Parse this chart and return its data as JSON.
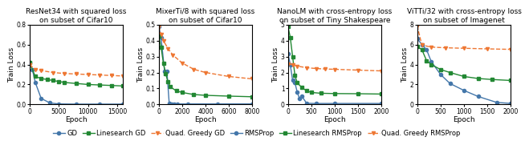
{
  "plots": [
    {
      "title": "ResNet34 with squared loss\non subset of Cifar10",
      "xlabel": "Epoch",
      "ylabel": "Train Loss",
      "xlim": [
        0,
        16000
      ],
      "ylim": [
        0,
        0.8
      ],
      "xticks": [
        0,
        5000,
        10000,
        15000
      ],
      "yticks": [
        0.0,
        0.2,
        0.4,
        0.6,
        0.8
      ],
      "series": [
        {
          "label": "GD",
          "color": "#4477AA",
          "marker": "o",
          "linestyle": "-",
          "x": [
            0,
            500,
            1000,
            2000,
            3500,
            5000,
            8000,
            12000,
            16000
          ],
          "y": [
            0.42,
            0.35,
            0.22,
            0.06,
            0.015,
            0.005,
            0.003,
            0.003,
            0.003
          ]
        },
        {
          "label": "Linesearch GD",
          "color": "#228833",
          "marker": "s",
          "linestyle": "-",
          "x": [
            0,
            1000,
            2000,
            3000,
            4000,
            5000,
            6000,
            8000,
            10000,
            12000,
            14000,
            16000
          ],
          "y": [
            0.42,
            0.28,
            0.26,
            0.25,
            0.24,
            0.23,
            0.22,
            0.21,
            0.2,
            0.195,
            0.19,
            0.185
          ]
        },
        {
          "label": "Quad. Greedy GD",
          "color": "#EE7733",
          "marker": "v",
          "linestyle": "--",
          "x": [
            0,
            1000,
            2000,
            4000,
            6000,
            8000,
            10000,
            12000,
            14000,
            16000
          ],
          "y": [
            0.4,
            0.35,
            0.34,
            0.32,
            0.31,
            0.305,
            0.3,
            0.295,
            0.29,
            0.285
          ]
        }
      ]
    },
    {
      "title": "MixerTi/8 with squared loss\non subset of Cifar10",
      "xlabel": "Epoch",
      "ylabel": "Train Loss",
      "xlim": [
        0,
        8000
      ],
      "ylim": [
        0,
        0.5
      ],
      "xticks": [
        0,
        2000,
        4000,
        6000,
        8000
      ],
      "yticks": [
        0.0,
        0.1,
        0.2,
        0.3,
        0.4,
        0.5
      ],
      "series": [
        {
          "label": "GD",
          "color": "#4477AA",
          "marker": "o",
          "linestyle": "-",
          "x": [
            0,
            200,
            500,
            700,
            900,
            1100,
            1300,
            1600,
            2500,
            5000,
            8000
          ],
          "y": [
            0.49,
            0.42,
            0.21,
            0.21,
            0.005,
            0.003,
            0.003,
            0.003,
            0.003,
            0.003,
            0.003
          ]
        },
        {
          "label": "Linesearch GD",
          "color": "#228833",
          "marker": "s",
          "linestyle": "-",
          "x": [
            0,
            200,
            400,
            600,
            800,
            1000,
            1500,
            2000,
            3000,
            4000,
            6000,
            8000
          ],
          "y": [
            0.43,
            0.36,
            0.26,
            0.19,
            0.14,
            0.11,
            0.085,
            0.075,
            0.062,
            0.057,
            0.052,
            0.048
          ]
        },
        {
          "label": "Quad. Greedy GD",
          "color": "#EE7733",
          "marker": "v",
          "linestyle": "--",
          "x": [
            0,
            200,
            400,
            800,
            1200,
            2000,
            3000,
            4000,
            6000,
            8000
          ],
          "y": [
            0.49,
            0.44,
            0.4,
            0.35,
            0.31,
            0.26,
            0.22,
            0.2,
            0.175,
            0.16
          ]
        }
      ]
    },
    {
      "title": "NanoLM with cross-entropy loss\non subset of Tiny Shakespeare",
      "xlabel": "Epoch",
      "ylabel": "Train Loss",
      "xlim": [
        0,
        2000
      ],
      "ylim": [
        0,
        5
      ],
      "xticks": [
        0,
        500,
        1000,
        1500,
        2000
      ],
      "yticks": [
        0,
        1,
        2,
        3,
        4,
        5
      ],
      "series": [
        {
          "label": "RMSProp",
          "color": "#4477AA",
          "marker": "o",
          "linestyle": "-",
          "x": [
            0,
            50,
            100,
            150,
            200,
            250,
            300,
            400,
            600,
            1000,
            2000
          ],
          "y": [
            3.2,
            2.5,
            1.5,
            1.35,
            0.75,
            0.35,
            0.5,
            0.07,
            0.06,
            0.06,
            0.06
          ]
        },
        {
          "label": "Linesearch RMSProp",
          "color": "#228833",
          "marker": "s",
          "linestyle": "-",
          "x": [
            0,
            50,
            100,
            150,
            200,
            300,
            400,
            500,
            700,
            1000,
            1500,
            2000
          ],
          "y": [
            4.9,
            4.2,
            3.0,
            1.8,
            1.35,
            1.05,
            0.85,
            0.75,
            0.7,
            0.68,
            0.67,
            0.65
          ]
        },
        {
          "label": "Quad. Greedy RMSProp",
          "color": "#EE7733",
          "marker": "v",
          "linestyle": "--",
          "x": [
            0,
            100,
            200,
            400,
            600,
            800,
            1000,
            1500,
            2000
          ],
          "y": [
            2.55,
            2.48,
            2.4,
            2.3,
            2.25,
            2.22,
            2.2,
            2.15,
            2.1
          ]
        }
      ]
    },
    {
      "title": "ViTTi/32 with cross-entropy loss\non subset of Imagenet",
      "xlabel": "Epoch",
      "ylabel": "Train Loss",
      "xlim": [
        0,
        2000
      ],
      "ylim": [
        0,
        8
      ],
      "xticks": [
        0,
        500,
        1000,
        1500,
        2000
      ],
      "yticks": [
        0,
        2,
        4,
        6,
        8
      ],
      "series": [
        {
          "label": "RMSProp",
          "color": "#4477AA",
          "marker": "o",
          "linestyle": "-",
          "x": [
            0,
            100,
            200,
            300,
            500,
            700,
            1000,
            1300,
            1700,
            2000
          ],
          "y": [
            6.6,
            6.0,
            5.5,
            4.3,
            3.0,
            2.1,
            1.4,
            0.8,
            0.2,
            0.1
          ]
        },
        {
          "label": "Linesearch RMSProp",
          "color": "#228833",
          "marker": "s",
          "linestyle": "-",
          "x": [
            0,
            100,
            200,
            300,
            500,
            700,
            1000,
            1300,
            1600,
            2000
          ],
          "y": [
            5.8,
            5.5,
            4.4,
            4.0,
            3.5,
            3.2,
            2.8,
            2.6,
            2.5,
            2.4
          ]
        },
        {
          "label": "Quad. Greedy RMSProp",
          "color": "#EE7733",
          "marker": "v",
          "linestyle": "--",
          "x": [
            0,
            100,
            300,
            600,
            1000,
            1500,
            2000
          ],
          "y": [
            7.9,
            5.95,
            5.75,
            5.68,
            5.63,
            5.57,
            5.52
          ]
        }
      ]
    }
  ],
  "legend_left": [
    {
      "label": "GD",
      "color": "#4477AA",
      "marker": "o",
      "linestyle": "-"
    },
    {
      "label": "Linesearch GD",
      "color": "#228833",
      "marker": "s",
      "linestyle": "-"
    },
    {
      "label": "Quad. Greedy GD",
      "color": "#EE7733",
      "marker": "v",
      "linestyle": "--"
    }
  ],
  "legend_right": [
    {
      "label": "RMSProp",
      "color": "#4477AA",
      "marker": "o",
      "linestyle": "-"
    },
    {
      "label": "Linesearch RMSProp",
      "color": "#228833",
      "marker": "s",
      "linestyle": "-"
    },
    {
      "label": "Quad. Greedy RMSProp",
      "color": "#EE7733",
      "marker": "v",
      "linestyle": "--"
    }
  ],
  "background_color": "#ffffff",
  "title_fontsize": 6.5,
  "label_fontsize": 6.5,
  "tick_fontsize": 5.5,
  "legend_fontsize": 6.0,
  "marker_size": 3,
  "linewidth": 1.0
}
